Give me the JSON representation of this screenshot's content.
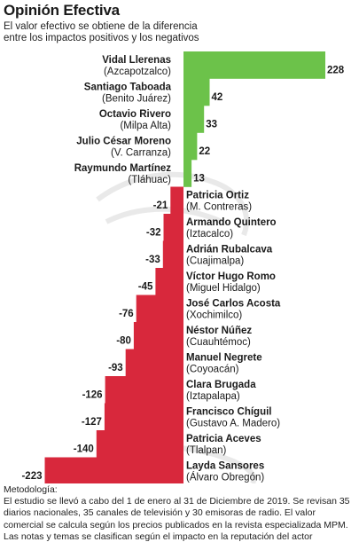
{
  "header": {
    "title": "Opinión Efectiva",
    "subtitle": "El valor efectivo se obtiene de la diferencia entre los impactos positivos y los negativos"
  },
  "footer": {
    "label": "Metodología:",
    "text": "El estudio se llevó a cabo del 1 de enero al 31 de Diciembre de 2019. Se revisan 35 diarios nacionales, 35 canales de televisión y 30 emisoras de radio. El valor comercial se calcula según los precios publicados en la revista especializada MPM. Las notas y temas se clasifican según el impacto en la reputación del actor"
  },
  "colors": {
    "positive": "#6cc24a",
    "negative": "#d8283c"
  },
  "chart_data": {
    "type": "bar",
    "orientation": "horizontal",
    "title": "Opinión Efectiva",
    "subtitle": "El valor efectivo se obtiene de la diferencia entre los impactos positivos y los negativos",
    "xlabel": "",
    "ylabel": "",
    "xlim": [
      -223,
      228
    ],
    "grid": false,
    "legend": "none",
    "categories": [
      {
        "name": "Vidal Llerenas",
        "sub": "(Azcapotzalco)"
      },
      {
        "name": "Santiago Taboada",
        "sub": "(Benito Juárez)"
      },
      {
        "name": "Octavio Rivero",
        "sub": "(Milpa Alta)"
      },
      {
        "name": "Julio César Moreno",
        "sub": "(V. Carranza)"
      },
      {
        "name": "Raymundo Martínez",
        "sub": "(Tláhuac)"
      },
      {
        "name": "Patricia Ortiz",
        "sub": "(M. Contreras)"
      },
      {
        "name": "Armando Quintero",
        "sub": "(Iztacalco)"
      },
      {
        "name": "Adrián Rubalcava",
        "sub": "(Cuajimalpa)"
      },
      {
        "name": "Víctor Hugo Romo",
        "sub": "(Miguel Hidalgo)"
      },
      {
        "name": "José Carlos Acosta",
        "sub": "(Xochimilco)"
      },
      {
        "name": "Néstor Núñez",
        "sub": "(Cuauhtémoc)"
      },
      {
        "name": "Manuel Negrete",
        "sub": "(Coyoacán)"
      },
      {
        "name": "Clara Brugada",
        "sub": "(Iztapalapa)"
      },
      {
        "name": "Francisco Chíguil",
        "sub": "(Gustavo A. Madero)"
      },
      {
        "name": "Patricia Aceves",
        "sub": "(Tlalpan)"
      },
      {
        "name": "Layda Sansores",
        "sub": "(Álvaro Obregón)"
      }
    ],
    "values": [
      228,
      42,
      33,
      22,
      13,
      -21,
      -32,
      -33,
      -45,
      -76,
      -80,
      -93,
      -126,
      -127,
      -140,
      -223
    ],
    "value_labels": [
      "228",
      "42",
      "33",
      "22",
      "13",
      "-21",
      "-32",
      "-33",
      "-45",
      "-76",
      "-80",
      "-93",
      "-126",
      "-127",
      "-140",
      "-223"
    ]
  }
}
